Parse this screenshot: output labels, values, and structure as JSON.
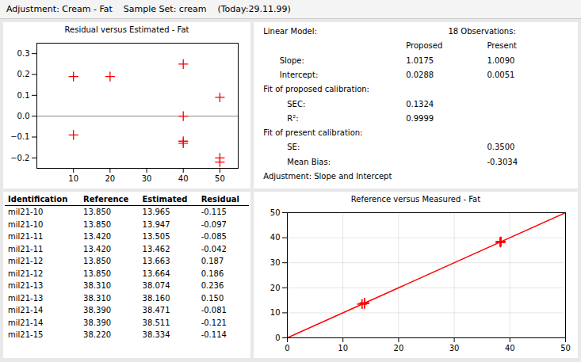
{
  "title": "Adjustment: Cream - Fat    Sample Set: cream    (Today:29.11.99)",
  "chart_data": [
    {
      "type": "scatter",
      "title": "Residual versus Estimated - Fat",
      "x": [
        10,
        10,
        20,
        40,
        40,
        40,
        40,
        50,
        50,
        50
      ],
      "values": [
        0.19,
        -0.09,
        0.19,
        0.25,
        -0.12,
        -0.13,
        0.0,
        0.09,
        -0.2,
        -0.22
      ],
      "color": "red",
      "marker": "plus",
      "reference_line": 0,
      "xlim": [
        0,
        55
      ],
      "ylim": [
        -0.25,
        0.35
      ],
      "xticks": [
        10,
        20,
        30,
        40,
        50
      ],
      "yticks": [
        -0.2,
        -0.1,
        {
          "value": 0,
          "label": "0.0"
        },
        0.1,
        0.2,
        0.3
      ],
      "grid": false
    },
    {
      "type": "text",
      "rows": [
        [
          "Linear Model:",
          "18 Observations:"
        ],
        [
          null,
          "Proposed",
          "Present"
        ],
        [
          "Slope:",
          "1.0175",
          "1.0090"
        ],
        [
          "Intercept:",
          "0.0288",
          "0.0051"
        ],
        [
          "Fit of proposed calibration:",
          null,
          null
        ],
        [
          "   SEC:",
          "0.1324",
          null
        ],
        [
          "   R²:",
          "0.9999",
          null
        ],
        [
          "Fit of present calibration:",
          null,
          null
        ],
        [
          "   SE:",
          null,
          "0.3500"
        ],
        [
          "   Mean Bias:",
          null,
          "-0.3034"
        ],
        [
          "Adjustment: Slope and Intercept",
          null,
          null
        ]
      ]
    },
    {
      "type": "table",
      "columns": [
        "Identification",
        "Reference",
        "Estimated",
        "Residual"
      ],
      "rows": [
        [
          "mil21-10",
          "13.850",
          "13.965",
          "-0.115"
        ],
        [
          "mil21-10",
          "13.850",
          "13.947",
          "-0.097"
        ],
        [
          "mil21-11",
          "13.420",
          "13.505",
          "-0.085"
        ],
        [
          "mil21-11",
          "13.420",
          "13.462",
          "-0.042"
        ],
        [
          "mil21-12",
          "13.850",
          "13.663",
          "0.187"
        ],
        [
          "mil21-12",
          "13.850",
          "13.664",
          "0.186"
        ],
        [
          "mil21-13",
          "38.310",
          "38.074",
          "0.236"
        ],
        [
          "mil21-13",
          "38.310",
          "38.160",
          "0.150"
        ],
        [
          "mil21-14",
          "38.390",
          "38.471",
          "-0.081"
        ],
        [
          "mil21-14",
          "38.390",
          "38.511",
          "-0.121"
        ],
        [
          "mil21-15",
          "38.220",
          "38.334",
          "-0.114"
        ]
      ]
    },
    {
      "type": "scatter",
      "title": "Reference versus Measured - Fat",
      "series": [
        {
          "type": "line",
          "color": "red",
          "x": [
            0,
            50
          ],
          "values": [
            0,
            50
          ]
        },
        {
          "type": "scatter",
          "color": "red",
          "marker": "plus",
          "x": [
            13.85,
            13.85,
            13.42,
            13.42,
            13.85,
            13.85,
            38.31,
            38.31,
            38.39,
            38.39,
            38.22
          ],
          "values": [
            13.965,
            13.947,
            13.505,
            13.462,
            13.663,
            13.664,
            38.074,
            38.16,
            38.471,
            38.511,
            38.334
          ]
        }
      ],
      "xlim": [
        0,
        50
      ],
      "ylim": [
        0,
        50
      ],
      "xticks": [
        0,
        10,
        20,
        30,
        40,
        50
      ],
      "yticks": [
        0,
        10,
        20,
        30,
        40,
        50
      ],
      "grid": true
    }
  ]
}
